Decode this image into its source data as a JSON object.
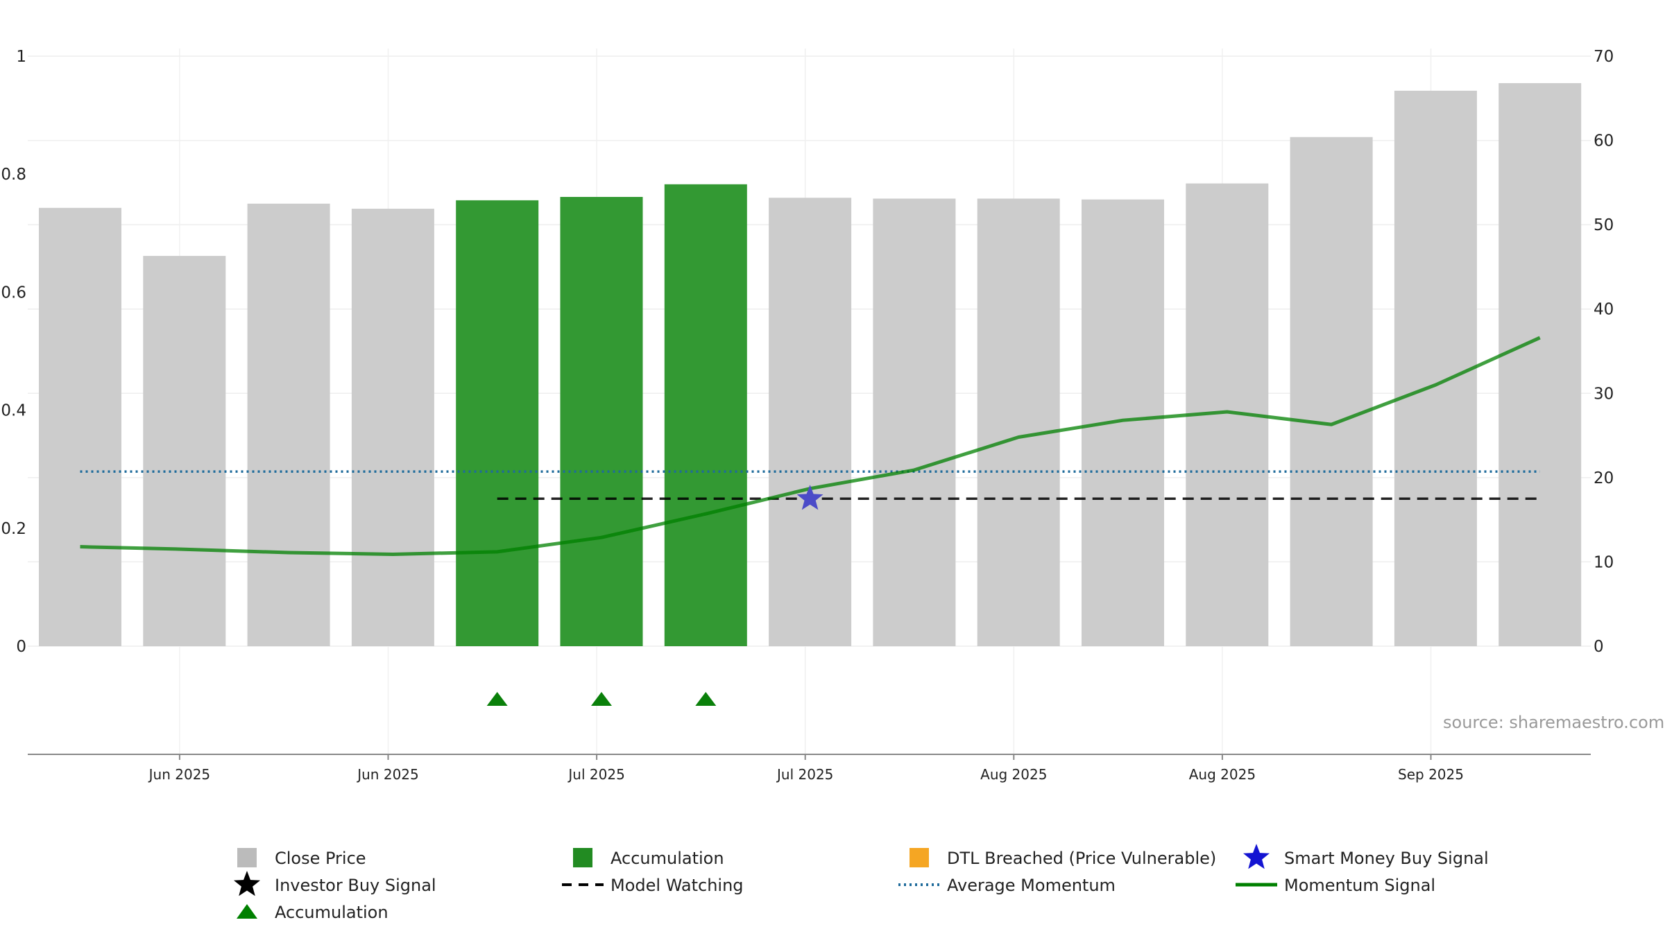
{
  "chart_data": {
    "type": "bar",
    "bars": {
      "values": [
        52.0,
        46.3,
        52.5,
        51.9,
        52.9,
        53.3,
        54.8,
        53.2,
        53.1,
        53.1,
        53.0,
        54.9,
        60.4,
        65.9,
        66.8
      ],
      "states": [
        "close",
        "close",
        "close",
        "close",
        "accumulation",
        "accumulation",
        "accumulation",
        "close",
        "close",
        "close",
        "close",
        "close",
        "close",
        "close",
        "close"
      ]
    },
    "momentum_signal": [
      11.8,
      11.5,
      11.1,
      10.9,
      11.2,
      12.9,
      15.7,
      18.7,
      20.9,
      24.8,
      26.8,
      27.8,
      26.3,
      31.0,
      36.6
    ],
    "average_momentum": 0.296,
    "model_watching": {
      "value": 0.25,
      "start_index": 4,
      "end_index": 14
    },
    "smart_money_buy_signal": {
      "index": 7,
      "value": 0.25
    },
    "accumulation_markers": [
      4,
      5,
      6
    ],
    "y_left": {
      "min": 0,
      "max": 1,
      "ticks": [
        "0",
        "0.2",
        "0.4",
        "0.6",
        "0.8",
        "1"
      ]
    },
    "y_right": {
      "min": 0,
      "max": 70,
      "ticks": [
        "0",
        "10",
        "20",
        "30",
        "40",
        "50",
        "60",
        "70"
      ]
    },
    "x_ticks": [
      {
        "label": "Jun 2025",
        "pos": 1.35
      },
      {
        "label": "Jun 2025",
        "pos": 3.35
      },
      {
        "label": "Jul 2025",
        "pos": 5.35
      },
      {
        "label": "Jul 2025",
        "pos": 7.35
      },
      {
        "label": "Aug 2025",
        "pos": 9.35
      },
      {
        "label": "Aug 2025",
        "pos": 11.35
      },
      {
        "label": "Sep 2025",
        "pos": 13.35
      }
    ],
    "legend": {
      "placement": "bottom",
      "items": [
        {
          "label": "Close Price",
          "symbol": "square",
          "color": "#bbbbbb"
        },
        {
          "label": "Accumulation",
          "symbol": "square",
          "color": "#228b22"
        },
        {
          "label": "DTL Breached (Price Vulnerable)",
          "symbol": "square",
          "color": "#f5a623"
        },
        {
          "label": "Smart Money Buy Signal",
          "symbol": "star",
          "color": "#1414d2"
        },
        {
          "label": "Investor Buy Signal",
          "symbol": "star",
          "color": "#000000"
        },
        {
          "label": "Model Watching",
          "symbol": "dash",
          "color": "#000000"
        },
        {
          "label": "Average Momentum",
          "symbol": "dot",
          "color": "#1f6b9b"
        },
        {
          "label": "Momentum Signal",
          "symbol": "line",
          "color": "#008000"
        },
        {
          "label": "Accumulation",
          "symbol": "triangle",
          "color": "#008000"
        }
      ]
    },
    "source": "source: sharemaestro.com",
    "colors": {
      "close_bar": "#cccccc",
      "accumulation_bar": "#339933",
      "momentum": "#008000",
      "average_momentum": "#1f6b9b",
      "model_watching": "#000000",
      "smart_money_star": "#4b4bc8",
      "accumulation_marker": "#0a800a"
    }
  }
}
